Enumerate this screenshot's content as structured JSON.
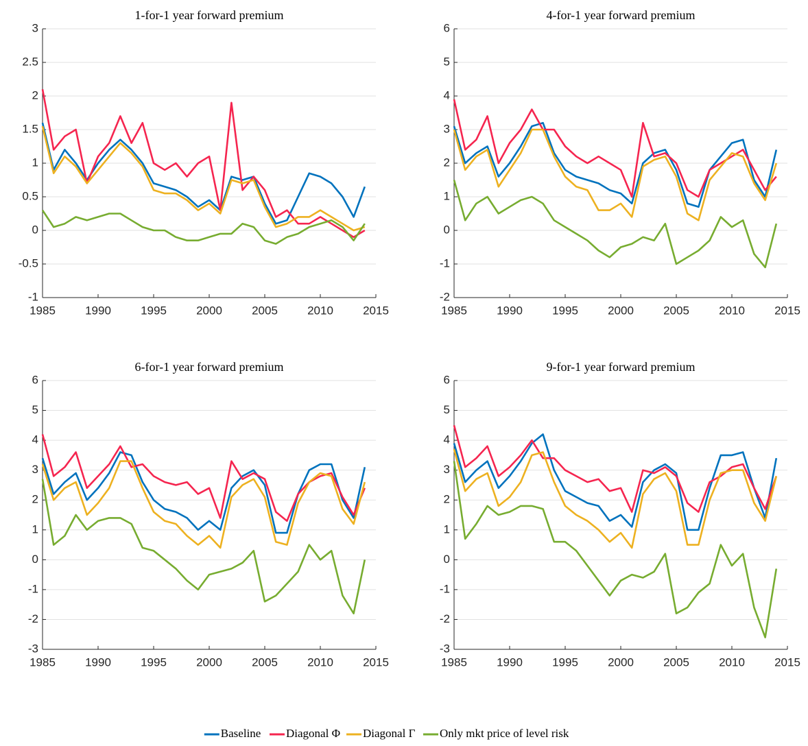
{
  "chart_data": [
    {
      "type": "line",
      "title": "1-for-1 year forward premium",
      "x": [
        1985,
        1986,
        1987,
        1988,
        1989,
        1990,
        1991,
        1992,
        1993,
        1994,
        1995,
        1996,
        1997,
        1998,
        1999,
        2000,
        2001,
        2002,
        2003,
        2004,
        2005,
        2006,
        2007,
        2008,
        2009,
        2010,
        2011,
        2012,
        2013,
        2014
      ],
      "xlim": [
        1985,
        2015
      ],
      "xticks": [
        1985,
        1990,
        1995,
        2000,
        2005,
        2010,
        2015
      ],
      "ylim": [
        -1,
        3
      ],
      "yticks": [
        -1,
        -0.5,
        0,
        0.5,
        1,
        1.5,
        2,
        2.5,
        3
      ],
      "grid": true,
      "series": [
        {
          "name": "Baseline",
          "color": "#0072bd",
          "values": [
            1.6,
            0.9,
            1.2,
            1.0,
            0.75,
            1.0,
            1.2,
            1.35,
            1.2,
            1.0,
            0.7,
            0.65,
            0.6,
            0.5,
            0.35,
            0.45,
            0.3,
            0.8,
            0.75,
            0.8,
            0.4,
            0.1,
            0.15,
            0.5,
            0.85,
            0.8,
            0.7,
            0.5,
            0.2,
            0.65
          ]
        },
        {
          "name": "Diagonal Φ",
          "color": "#f5254f",
          "values": [
            2.1,
            1.2,
            1.4,
            1.5,
            0.7,
            1.1,
            1.3,
            1.7,
            1.3,
            1.6,
            1.0,
            0.9,
            1.0,
            0.8,
            1.0,
            1.1,
            0.3,
            1.9,
            0.6,
            0.8,
            0.6,
            0.2,
            0.3,
            0.1,
            0.1,
            0.2,
            0.1,
            0.0,
            -0.1,
            0.0
          ]
        },
        {
          "name": "Diagonal Γ",
          "color": "#edb120",
          "values": [
            1.55,
            0.85,
            1.1,
            0.95,
            0.7,
            0.9,
            1.1,
            1.3,
            1.15,
            0.95,
            0.6,
            0.55,
            0.55,
            0.45,
            0.3,
            0.4,
            0.25,
            0.75,
            0.7,
            0.75,
            0.35,
            0.05,
            0.1,
            0.2,
            0.2,
            0.3,
            0.2,
            0.1,
            0.0,
            0.05
          ]
        },
        {
          "name": "Only mkt price of level risk",
          "color": "#77ac30",
          "values": [
            0.3,
            0.05,
            0.1,
            0.2,
            0.15,
            0.2,
            0.25,
            0.25,
            0.15,
            0.05,
            0.0,
            0.0,
            -0.1,
            -0.15,
            -0.15,
            -0.1,
            -0.05,
            -0.05,
            0.1,
            0.05,
            -0.15,
            -0.2,
            -0.1,
            -0.05,
            0.05,
            0.1,
            0.15,
            0.05,
            -0.15,
            0.1
          ]
        }
      ]
    },
    {
      "type": "line",
      "title": "4-for-1 year forward premium",
      "x": [
        1985,
        1986,
        1987,
        1988,
        1989,
        1990,
        1991,
        1992,
        1993,
        1994,
        1995,
        1996,
        1997,
        1998,
        1999,
        2000,
        2001,
        2002,
        2003,
        2004,
        2005,
        2006,
        2007,
        2008,
        2009,
        2010,
        2011,
        2012,
        2013,
        2014
      ],
      "xlim": [
        1985,
        2015
      ],
      "xticks": [
        1985,
        1990,
        1995,
        2000,
        2005,
        2010,
        2015
      ],
      "ylim": [
        -2,
        6
      ],
      "yticks": [
        -2,
        -1,
        0,
        1,
        2,
        3,
        4,
        5,
        6
      ],
      "grid": true,
      "series": [
        {
          "name": "Baseline",
          "color": "#0072bd",
          "values": [
            3.1,
            2.0,
            2.3,
            2.5,
            1.6,
            2.0,
            2.5,
            3.1,
            3.2,
            2.3,
            1.8,
            1.6,
            1.5,
            1.4,
            1.2,
            1.1,
            0.8,
            2.0,
            2.3,
            2.4,
            1.8,
            0.8,
            0.7,
            1.8,
            2.2,
            2.6,
            2.7,
            1.5,
            1.0,
            2.4
          ]
        },
        {
          "name": "Diagonal Φ",
          "color": "#f5254f",
          "values": [
            3.9,
            2.4,
            2.7,
            3.4,
            2.0,
            2.6,
            3.0,
            3.6,
            3.0,
            3.0,
            2.5,
            2.2,
            2.0,
            2.2,
            2.0,
            1.8,
            1.0,
            3.2,
            2.2,
            2.3,
            2.0,
            1.2,
            1.0,
            1.8,
            2.0,
            2.2,
            2.4,
            1.8,
            1.2,
            1.6
          ]
        },
        {
          "name": "Diagonal Γ",
          "color": "#edb120",
          "values": [
            3.0,
            1.8,
            2.2,
            2.4,
            1.3,
            1.8,
            2.3,
            3.0,
            3.0,
            2.2,
            1.6,
            1.3,
            1.2,
            0.6,
            0.6,
            0.8,
            0.4,
            1.9,
            2.1,
            2.2,
            1.6,
            0.5,
            0.3,
            1.5,
            1.9,
            2.3,
            2.2,
            1.4,
            0.9,
            2.0
          ]
        },
        {
          "name": "Only mkt price of level risk",
          "color": "#77ac30",
          "values": [
            1.5,
            0.3,
            0.8,
            1.0,
            0.5,
            0.7,
            0.9,
            1.0,
            0.8,
            0.3,
            0.1,
            -0.1,
            -0.3,
            -0.6,
            -0.8,
            -0.5,
            -0.4,
            -0.2,
            -0.3,
            0.2,
            -1.0,
            -0.8,
            -0.6,
            -0.3,
            0.4,
            0.1,
            0.3,
            -0.7,
            -1.1,
            0.2
          ]
        }
      ]
    },
    {
      "type": "line",
      "title": "6-for-1 year forward premium",
      "x": [
        1985,
        1986,
        1987,
        1988,
        1989,
        1990,
        1991,
        1992,
        1993,
        1994,
        1995,
        1996,
        1997,
        1998,
        1999,
        2000,
        2001,
        2002,
        2003,
        2004,
        2005,
        2006,
        2007,
        2008,
        2009,
        2010,
        2011,
        2012,
        2013,
        2014
      ],
      "xlim": [
        1985,
        2015
      ],
      "xticks": [
        1985,
        1990,
        1995,
        2000,
        2005,
        2010,
        2015
      ],
      "ylim": [
        -3,
        6
      ],
      "yticks": [
        -3,
        -2,
        -1,
        0,
        1,
        2,
        3,
        4,
        5,
        6
      ],
      "grid": true,
      "series": [
        {
          "name": "Baseline",
          "color": "#0072bd",
          "values": [
            3.4,
            2.2,
            2.6,
            2.9,
            2.0,
            2.4,
            2.9,
            3.6,
            3.5,
            2.6,
            2.0,
            1.7,
            1.6,
            1.4,
            1.0,
            1.3,
            1.0,
            2.4,
            2.8,
            3.0,
            2.5,
            0.9,
            0.9,
            2.2,
            3.0,
            3.2,
            3.2,
            2.0,
            1.4,
            3.1
          ]
        },
        {
          "name": "Diagonal Φ",
          "color": "#f5254f",
          "values": [
            4.2,
            2.8,
            3.1,
            3.6,
            2.4,
            2.8,
            3.2,
            3.8,
            3.1,
            3.2,
            2.8,
            2.6,
            2.5,
            2.6,
            2.2,
            2.4,
            1.4,
            3.3,
            2.7,
            2.9,
            2.7,
            1.6,
            1.3,
            2.2,
            2.6,
            2.8,
            2.9,
            2.1,
            1.5,
            2.4
          ]
        },
        {
          "name": "Diagonal Γ",
          "color": "#edb120",
          "values": [
            3.2,
            2.0,
            2.4,
            2.6,
            1.5,
            1.9,
            2.4,
            3.3,
            3.3,
            2.4,
            1.6,
            1.3,
            1.2,
            0.8,
            0.5,
            0.8,
            0.4,
            2.1,
            2.5,
            2.7,
            2.1,
            0.6,
            0.5,
            1.9,
            2.6,
            2.9,
            2.8,
            1.7,
            1.2,
            2.6
          ]
        },
        {
          "name": "Only mkt price of level risk",
          "color": "#77ac30",
          "values": [
            2.7,
            0.5,
            0.8,
            1.5,
            1.0,
            1.3,
            1.4,
            1.4,
            1.2,
            0.4,
            0.3,
            0.0,
            -0.3,
            -0.7,
            -1.0,
            -0.5,
            -0.4,
            -0.3,
            -0.1,
            0.3,
            -1.4,
            -1.2,
            -0.8,
            -0.4,
            0.5,
            0.0,
            0.3,
            -1.2,
            -1.8,
            0.0
          ]
        }
      ]
    },
    {
      "type": "line",
      "title": "9-for-1 year forward premium",
      "x": [
        1985,
        1986,
        1987,
        1988,
        1989,
        1990,
        1991,
        1992,
        1993,
        1994,
        1995,
        1996,
        1997,
        1998,
        1999,
        2000,
        2001,
        2002,
        2003,
        2004,
        2005,
        2006,
        2007,
        2008,
        2009,
        2010,
        2011,
        2012,
        2013,
        2014
      ],
      "xlim": [
        1985,
        2015
      ],
      "xticks": [
        1985,
        1990,
        1995,
        2000,
        2005,
        2010,
        2015
      ],
      "ylim": [
        -3,
        6
      ],
      "yticks": [
        -3,
        -2,
        -1,
        0,
        1,
        2,
        3,
        4,
        5,
        6
      ],
      "grid": true,
      "series": [
        {
          "name": "Baseline",
          "color": "#0072bd",
          "values": [
            3.9,
            2.6,
            3.0,
            3.3,
            2.4,
            2.8,
            3.3,
            3.9,
            4.2,
            3.0,
            2.3,
            2.1,
            1.9,
            1.8,
            1.3,
            1.5,
            1.1,
            2.6,
            3.0,
            3.2,
            2.9,
            1.0,
            1.0,
            2.4,
            3.5,
            3.5,
            3.6,
            2.4,
            1.4,
            3.4
          ]
        },
        {
          "name": "Diagonal Φ",
          "color": "#f5254f",
          "values": [
            4.5,
            3.1,
            3.4,
            3.8,
            2.8,
            3.1,
            3.5,
            4.0,
            3.4,
            3.4,
            3.0,
            2.8,
            2.6,
            2.7,
            2.3,
            2.4,
            1.6,
            3.0,
            2.9,
            3.1,
            2.8,
            1.9,
            1.6,
            2.6,
            2.8,
            3.1,
            3.2,
            2.4,
            1.7,
            2.8
          ]
        },
        {
          "name": "Diagonal Γ",
          "color": "#edb120",
          "values": [
            3.7,
            2.3,
            2.7,
            2.9,
            1.8,
            2.1,
            2.6,
            3.5,
            3.6,
            2.6,
            1.8,
            1.5,
            1.3,
            1.0,
            0.6,
            0.9,
            0.4,
            2.2,
            2.7,
            2.9,
            2.3,
            0.5,
            0.5,
            2.0,
            2.9,
            3.0,
            3.0,
            1.9,
            1.3,
            2.8
          ]
        },
        {
          "name": "Only mkt price of level risk",
          "color": "#77ac30",
          "values": [
            3.3,
            0.7,
            1.2,
            1.8,
            1.5,
            1.6,
            1.8,
            1.8,
            1.7,
            0.6,
            0.6,
            0.3,
            -0.2,
            -0.7,
            -1.2,
            -0.7,
            -0.5,
            -0.6,
            -0.4,
            0.2,
            -1.8,
            -1.6,
            -1.1,
            -0.8,
            0.5,
            -0.2,
            0.2,
            -1.6,
            -2.6,
            -0.3
          ]
        }
      ]
    }
  ]
}
